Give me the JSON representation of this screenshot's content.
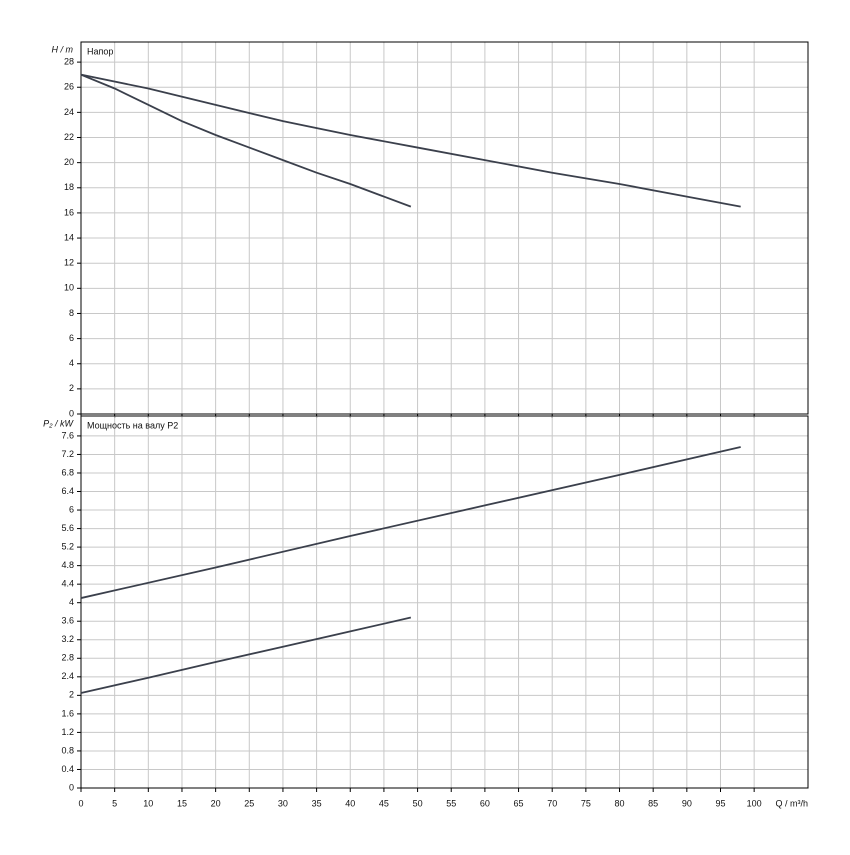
{
  "chart_data": [
    {
      "type": "line",
      "title": "Напор",
      "ylabel": "H / m",
      "xlim": [
        0,
        108
      ],
      "xticks": [
        0,
        5,
        10,
        15,
        20,
        25,
        30,
        35,
        40,
        45,
        50,
        55,
        60,
        65,
        70,
        75,
        80,
        85,
        90,
        95,
        100
      ],
      "show_xtick_labels": false,
      "ylim": [
        0,
        29.6
      ],
      "yticks": [
        0,
        2,
        4,
        6,
        8,
        10,
        12,
        14,
        16,
        18,
        20,
        22,
        24,
        26,
        28
      ],
      "grid": true,
      "series": [
        {
          "color": "#3b404c",
          "x": [
            0,
            5,
            10,
            15,
            20,
            25,
            30,
            35,
            40,
            45,
            49
          ],
          "values": [
            27,
            25.9,
            24.6,
            23.3,
            22.2,
            21.2,
            20.2,
            19.2,
            18.3,
            17.3,
            16.5
          ]
        },
        {
          "color": "#3b404c",
          "x": [
            0,
            10,
            20,
            30,
            40,
            50,
            60,
            70,
            80,
            90,
            98
          ],
          "values": [
            27,
            25.9,
            24.6,
            23.3,
            22.2,
            21.2,
            20.2,
            19.2,
            18.3,
            17.3,
            16.5
          ]
        }
      ]
    },
    {
      "type": "line",
      "title": "Мощность на валу P2",
      "ylabel": "P₂ / kW",
      "xlabel": "Q / m³/h",
      "xlim": [
        0,
        108
      ],
      "xticks": [
        0,
        5,
        10,
        15,
        20,
        25,
        30,
        35,
        40,
        45,
        50,
        55,
        60,
        65,
        70,
        75,
        80,
        85,
        90,
        95,
        100
      ],
      "show_xtick_labels": true,
      "ylim": [
        0,
        8.03
      ],
      "yticks": [
        0,
        0.4,
        0.8,
        1.2,
        1.6,
        2,
        2.4,
        2.8,
        3.2,
        3.6,
        4,
        4.4,
        4.8,
        5.2,
        5.6,
        6,
        6.4,
        6.8,
        7.2,
        7.6
      ],
      "grid": true,
      "series": [
        {
          "color": "#3b404c",
          "x": [
            0,
            10,
            20,
            30,
            40,
            49
          ],
          "values": [
            2.05,
            2.38,
            2.72,
            3.05,
            3.38,
            3.68
          ]
        },
        {
          "color": "#3b404c",
          "x": [
            0,
            20,
            40,
            60,
            80,
            98
          ],
          "values": [
            4.1,
            4.76,
            5.44,
            6.1,
            6.76,
            7.36
          ]
        }
      ]
    }
  ]
}
